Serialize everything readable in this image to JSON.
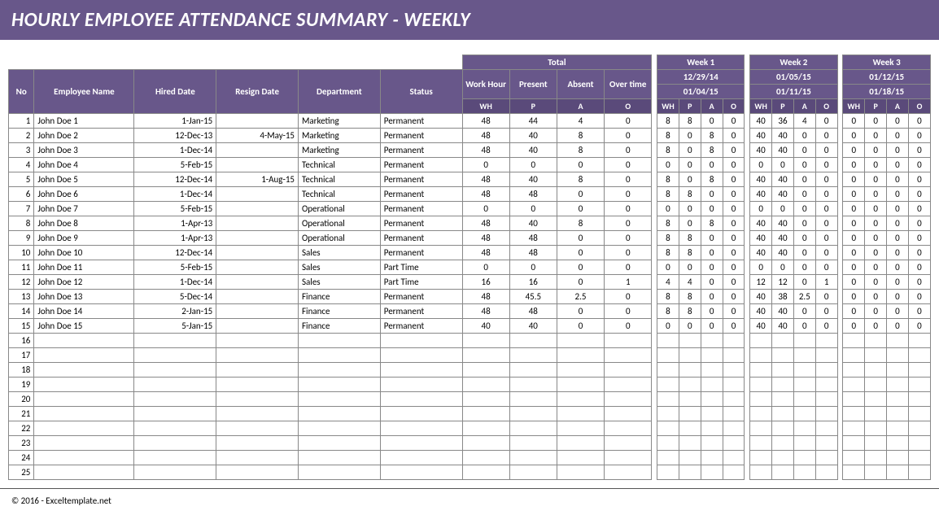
{
  "colors": {
    "header_bg": "#68578a",
    "subheader_bg": "#5a4a7a",
    "text_white": "#ffffff",
    "grid": "#888888",
    "page_bg": "#ffffff"
  },
  "title": "HOURLY EMPLOYEE ATTENDANCE SUMMARY - WEEKLY",
  "footer": "© 2016 - Exceltemplate.net",
  "columns": {
    "no": "No",
    "name": "Employee Name",
    "hired": "Hired Date",
    "resign": "Resign Date",
    "dept": "Department",
    "status": "Status"
  },
  "total_group": {
    "label": "Total",
    "work_hour": "Work Hour",
    "present": "Present",
    "absent": "Absent",
    "overtime": "Over time",
    "wh": "WH",
    "p": "P",
    "a": "A",
    "o": "O"
  },
  "weeks": [
    {
      "label": "Week 1",
      "date1": "12/29/14",
      "date2": "01/04/15",
      "wh": "WH",
      "p": "P",
      "a": "A",
      "o": "O"
    },
    {
      "label": "Week 2",
      "date1": "01/05/15",
      "date2": "01/11/15",
      "wh": "WH",
      "p": "P",
      "a": "A",
      "o": "O"
    },
    {
      "label": "Week 3",
      "date1": "01/12/15",
      "date2": "01/18/15",
      "wh": "WH",
      "p": "P",
      "a": "A",
      "o": "O"
    }
  ],
  "rows": [
    {
      "no": 1,
      "name": "John Doe 1",
      "hired": "1-Jan-15",
      "resign": "",
      "dept": "Marketing",
      "status": "Permanent",
      "tot": [
        "48",
        "44",
        "4",
        "0"
      ],
      "w1": [
        "8",
        "8",
        "0",
        "0"
      ],
      "w2": [
        "40",
        "36",
        "4",
        "0"
      ],
      "w3": [
        "0",
        "0",
        "0",
        "0"
      ]
    },
    {
      "no": 2,
      "name": "John Doe 2",
      "hired": "12-Dec-13",
      "resign": "4-May-15",
      "dept": "Marketing",
      "status": "Permanent",
      "tot": [
        "48",
        "40",
        "8",
        "0"
      ],
      "w1": [
        "8",
        "0",
        "8",
        "0"
      ],
      "w2": [
        "40",
        "40",
        "0",
        "0"
      ],
      "w3": [
        "0",
        "0",
        "0",
        "0"
      ]
    },
    {
      "no": 3,
      "name": "John Doe 3",
      "hired": "1-Dec-14",
      "resign": "",
      "dept": "Marketing",
      "status": "Permanent",
      "tot": [
        "48",
        "40",
        "8",
        "0"
      ],
      "w1": [
        "8",
        "0",
        "8",
        "0"
      ],
      "w2": [
        "40",
        "40",
        "0",
        "0"
      ],
      "w3": [
        "0",
        "0",
        "0",
        "0"
      ]
    },
    {
      "no": 4,
      "name": "John Doe 4",
      "hired": "5-Feb-15",
      "resign": "",
      "dept": "Technical",
      "status": "Permanent",
      "tot": [
        "0",
        "0",
        "0",
        "0"
      ],
      "w1": [
        "0",
        "0",
        "0",
        "0"
      ],
      "w2": [
        "0",
        "0",
        "0",
        "0"
      ],
      "w3": [
        "0",
        "0",
        "0",
        "0"
      ]
    },
    {
      "no": 5,
      "name": "John Doe 5",
      "hired": "12-Dec-14",
      "resign": "1-Aug-15",
      "dept": "Technical",
      "status": "Permanent",
      "tot": [
        "48",
        "40",
        "8",
        "0"
      ],
      "w1": [
        "8",
        "0",
        "8",
        "0"
      ],
      "w2": [
        "40",
        "40",
        "0",
        "0"
      ],
      "w3": [
        "0",
        "0",
        "0",
        "0"
      ]
    },
    {
      "no": 6,
      "name": "John Doe 6",
      "hired": "1-Dec-14",
      "resign": "",
      "dept": "Technical",
      "status": "Permanent",
      "tot": [
        "48",
        "48",
        "0",
        "0"
      ],
      "w1": [
        "8",
        "8",
        "0",
        "0"
      ],
      "w2": [
        "40",
        "40",
        "0",
        "0"
      ],
      "w3": [
        "0",
        "0",
        "0",
        "0"
      ]
    },
    {
      "no": 7,
      "name": "John Doe 7",
      "hired": "5-Feb-15",
      "resign": "",
      "dept": "Operational",
      "status": "Permanent",
      "tot": [
        "0",
        "0",
        "0",
        "0"
      ],
      "w1": [
        "0",
        "0",
        "0",
        "0"
      ],
      "w2": [
        "0",
        "0",
        "0",
        "0"
      ],
      "w3": [
        "0",
        "0",
        "0",
        "0"
      ]
    },
    {
      "no": 8,
      "name": "John Doe 8",
      "hired": "1-Apr-13",
      "resign": "",
      "dept": "Operational",
      "status": "Permanent",
      "tot": [
        "48",
        "40",
        "8",
        "0"
      ],
      "w1": [
        "8",
        "0",
        "8",
        "0"
      ],
      "w2": [
        "40",
        "40",
        "0",
        "0"
      ],
      "w3": [
        "0",
        "0",
        "0",
        "0"
      ]
    },
    {
      "no": 9,
      "name": "John Doe 9",
      "hired": "1-Apr-13",
      "resign": "",
      "dept": "Operational",
      "status": "Permanent",
      "tot": [
        "48",
        "48",
        "0",
        "0"
      ],
      "w1": [
        "8",
        "8",
        "0",
        "0"
      ],
      "w2": [
        "40",
        "40",
        "0",
        "0"
      ],
      "w3": [
        "0",
        "0",
        "0",
        "0"
      ]
    },
    {
      "no": 10,
      "name": "John Doe 10",
      "hired": "12-Dec-14",
      "resign": "",
      "dept": "Sales",
      "status": "Permanent",
      "tot": [
        "48",
        "48",
        "0",
        "0"
      ],
      "w1": [
        "8",
        "8",
        "0",
        "0"
      ],
      "w2": [
        "40",
        "40",
        "0",
        "0"
      ],
      "w3": [
        "0",
        "0",
        "0",
        "0"
      ]
    },
    {
      "no": 11,
      "name": "John Doe 11",
      "hired": "5-Feb-15",
      "resign": "",
      "dept": "Sales",
      "status": "Part Time",
      "tot": [
        "0",
        "0",
        "0",
        "0"
      ],
      "w1": [
        "0",
        "0",
        "0",
        "0"
      ],
      "w2": [
        "0",
        "0",
        "0",
        "0"
      ],
      "w3": [
        "0",
        "0",
        "0",
        "0"
      ]
    },
    {
      "no": 12,
      "name": "John Doe 12",
      "hired": "1-Dec-14",
      "resign": "",
      "dept": "Sales",
      "status": "Part Time",
      "tot": [
        "16",
        "16",
        "0",
        "1"
      ],
      "w1": [
        "4",
        "4",
        "0",
        "0"
      ],
      "w2": [
        "12",
        "12",
        "0",
        "1"
      ],
      "w3": [
        "0",
        "0",
        "0",
        "0"
      ]
    },
    {
      "no": 13,
      "name": "John Doe 13",
      "hired": "5-Dec-14",
      "resign": "",
      "dept": "Finance",
      "status": "Permanent",
      "tot": [
        "48",
        "45.5",
        "2.5",
        "0"
      ],
      "w1": [
        "8",
        "8",
        "0",
        "0"
      ],
      "w2": [
        "40",
        "38",
        "2.5",
        "0"
      ],
      "w3": [
        "0",
        "0",
        "0",
        "0"
      ]
    },
    {
      "no": 14,
      "name": "John Doe 14",
      "hired": "2-Jan-15",
      "resign": "",
      "dept": "Finance",
      "status": "Permanent",
      "tot": [
        "48",
        "48",
        "0",
        "0"
      ],
      "w1": [
        "8",
        "8",
        "0",
        "0"
      ],
      "w2": [
        "40",
        "40",
        "0",
        "0"
      ],
      "w3": [
        "0",
        "0",
        "0",
        "0"
      ]
    },
    {
      "no": 15,
      "name": "John Doe 15",
      "hired": "5-Jan-15",
      "resign": "",
      "dept": "Finance",
      "status": "Permanent",
      "tot": [
        "40",
        "40",
        "0",
        "0"
      ],
      "w1": [
        "0",
        "0",
        "0",
        "0"
      ],
      "w2": [
        "40",
        "40",
        "0",
        "0"
      ],
      "w3": [
        "0",
        "0",
        "0",
        "0"
      ]
    }
  ],
  "empty_rows": [
    16,
    17,
    18,
    19,
    20,
    21,
    22,
    23,
    24,
    25
  ]
}
